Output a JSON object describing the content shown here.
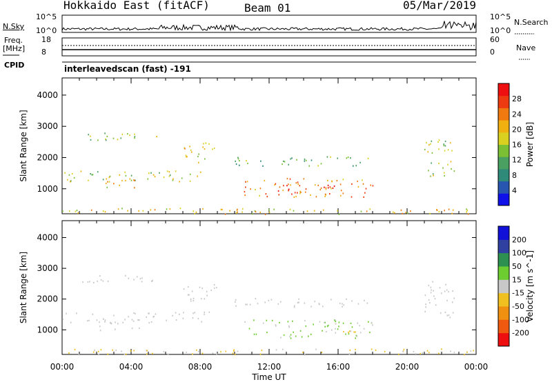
{
  "header": {
    "station": "Hokkaido East (fitACF)",
    "beam": "Beam 01",
    "date": "05/Mar/2019"
  },
  "noise_panel": {
    "left_label": "N.Sky",
    "right_label": "N.Search",
    "left_ticks": [
      "10^5",
      "10^0"
    ],
    "right_ticks": [
      "10^5",
      "10^0"
    ]
  },
  "freq_panel": {
    "left_label": "Freq.",
    "left_unit": "[MHz]",
    "right_label": "Nave",
    "left_ticks": [
      "18",
      "8"
    ],
    "right_ticks": [
      "60",
      "0"
    ],
    "cpid_label": "CPID",
    "cpid_value": "interleavedscan (fast) -191"
  },
  "chart_data": [
    {
      "type": "heatmap",
      "name": "power",
      "ylabel": "Slant Range [km]",
      "yticks": [
        "1000",
        "2000",
        "3000",
        "4000"
      ],
      "ylim": [
        200,
        4550
      ],
      "xlim": [
        0,
        24
      ],
      "colorbar": {
        "label": "Power [dB]",
        "ticks": [
          "4",
          "8",
          "12",
          "16",
          "20",
          "24",
          "28"
        ],
        "colors": [
          "#1010e8",
          "#2855b0",
          "#2f8a7a",
          "#4aa060",
          "#7bc034",
          "#d9d020",
          "#f0b010",
          "#f07a10",
          "#ee3a10",
          "#ee1010"
        ],
        "range": [
          0,
          30
        ]
      },
      "regions": [
        {
          "t0": 0.0,
          "t1": 8.5,
          "r0": 1250,
          "r1": 1600,
          "value": 15
        },
        {
          "t0": 2.0,
          "t1": 4.5,
          "r0": 1000,
          "r1": 1350,
          "value": 19
        },
        {
          "t0": 1.0,
          "t1": 6.0,
          "r0": 2550,
          "r1": 2800,
          "value": 14
        },
        {
          "t0": 7.0,
          "t1": 9.0,
          "r0": 1850,
          "r1": 2500,
          "value": 17
        },
        {
          "t0": 10.5,
          "t1": 18.0,
          "r0": 750,
          "r1": 1350,
          "value": 22
        },
        {
          "t0": 12.5,
          "t1": 16.5,
          "r0": 850,
          "r1": 1150,
          "value": 27
        },
        {
          "t0": 10.0,
          "t1": 18.0,
          "r0": 1750,
          "r1": 2050,
          "value": 12
        },
        {
          "t0": 21.0,
          "t1": 22.8,
          "r0": 1400,
          "r1": 2600,
          "value": 15
        },
        {
          "t0": 0.0,
          "t1": 24.0,
          "r0": 200,
          "r1": 400,
          "value": 18
        }
      ]
    },
    {
      "type": "heatmap",
      "name": "velocity",
      "ylabel": "Slant Range [km]",
      "yticks": [
        "1000",
        "2000",
        "3000",
        "4000"
      ],
      "ylim": [
        200,
        4550
      ],
      "xlim": [
        0,
        24
      ],
      "xticks": [
        "00:00",
        "04:00",
        "08:00",
        "12:00",
        "16:00",
        "20:00",
        "00:00"
      ],
      "xlabel": "Time UT",
      "colorbar": {
        "label": "Velocity [m s^-1]",
        "ticks": [
          "-200",
          "-100",
          "-50",
          "-15",
          "15",
          "50",
          "100",
          "200"
        ],
        "colors": [
          "#ee1010",
          "#f05a10",
          "#f09010",
          "#f0c020",
          "#c8c8c8",
          "#6ccc30",
          "#2e9050",
          "#3040a0",
          "#1010d8"
        ],
        "range": [
          -250,
          250
        ]
      },
      "regions": [
        {
          "t0": 0.0,
          "t1": 8.5,
          "r0": 1250,
          "r1": 1600,
          "value": 0
        },
        {
          "t0": 2.0,
          "t1": 4.5,
          "r0": 1000,
          "r1": 1350,
          "value": 0
        },
        {
          "t0": 1.0,
          "t1": 6.0,
          "r0": 2550,
          "r1": 2800,
          "value": 0
        },
        {
          "t0": 7.0,
          "t1": 9.0,
          "r0": 1850,
          "r1": 2500,
          "value": 0
        },
        {
          "t0": 10.5,
          "t1": 18.0,
          "r0": 750,
          "r1": 1350,
          "value": 30
        },
        {
          "t0": 15.0,
          "t1": 17.0,
          "r0": 750,
          "r1": 1000,
          "value": -30
        },
        {
          "t0": 10.0,
          "t1": 18.0,
          "r0": 1750,
          "r1": 2050,
          "value": 0
        },
        {
          "t0": 21.0,
          "t1": 22.8,
          "r0": 1400,
          "r1": 2600,
          "value": 0
        },
        {
          "t0": 0.0,
          "t1": 24.0,
          "r0": 200,
          "r1": 400,
          "value": -30
        }
      ]
    }
  ]
}
